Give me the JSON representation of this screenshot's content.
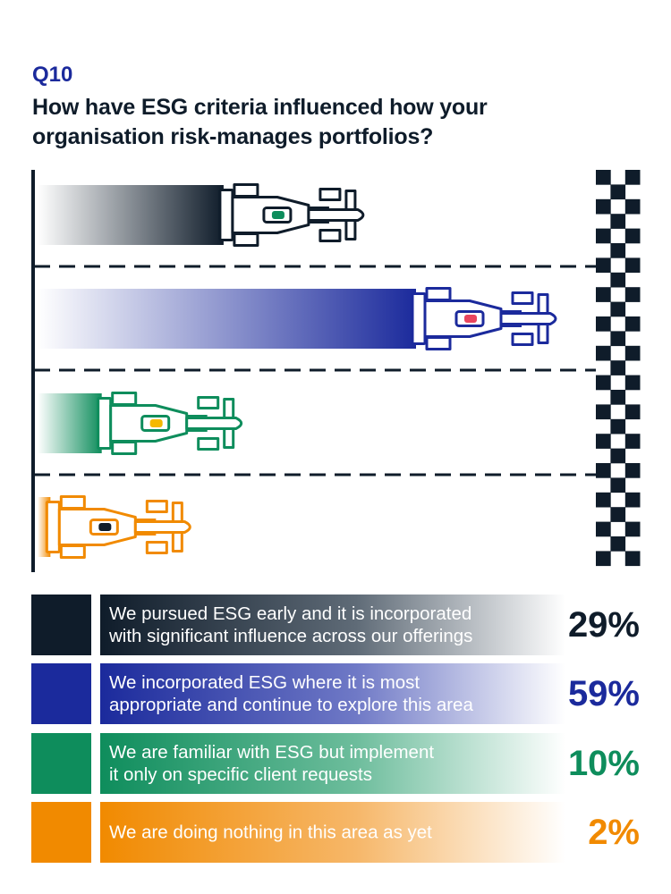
{
  "header": {
    "question_number": "Q10",
    "question": "How have ESG criteria influenced how your organisation risk-manages portfolios?"
  },
  "colors": {
    "navy": "#0f1c2a",
    "blue": "#1b2a9c",
    "green": "#0e8d5c",
    "orange": "#f18a00"
  },
  "chart_data": {
    "type": "bar",
    "orientation": "horizontal",
    "style": "race-cars with checkered finish line",
    "value_unit": "%",
    "categories": [
      "We pursued ESG early and it is incorporated with significant influence across our offerings",
      "We incorporated ESG where it is most appropriate and continue to explore this area",
      "We are familiar with ESG but implement it only on specific client requests",
      "We are doing nothing in this area as yet"
    ],
    "values": [
      29,
      59,
      10,
      2
    ],
    "xlim": [
      0,
      100
    ],
    "colors": [
      "#0f1c2a",
      "#1b2a9c",
      "#0e8d5c",
      "#f18a00"
    ],
    "car_cockpit_colors": [
      "#0e8d5c",
      "#e8455e",
      "#f5b800",
      "#0f1c2a"
    ]
  },
  "legend": [
    {
      "label_line1": "We pursued ESG early and it is incorporated",
      "label_line2": "with significant influence across our offerings",
      "pct": "29%"
    },
    {
      "label_line1": "We incorporated ESG where it is most",
      "label_line2": "appropriate and continue to explore this area",
      "pct": "59%"
    },
    {
      "label_line1": "We are familiar with ESG but implement",
      "label_line2": "it only on specific client requests",
      "pct": "10%"
    },
    {
      "label_line1": "We are doing nothing in this area as yet",
      "label_line2": "",
      "pct": "2%"
    }
  ]
}
